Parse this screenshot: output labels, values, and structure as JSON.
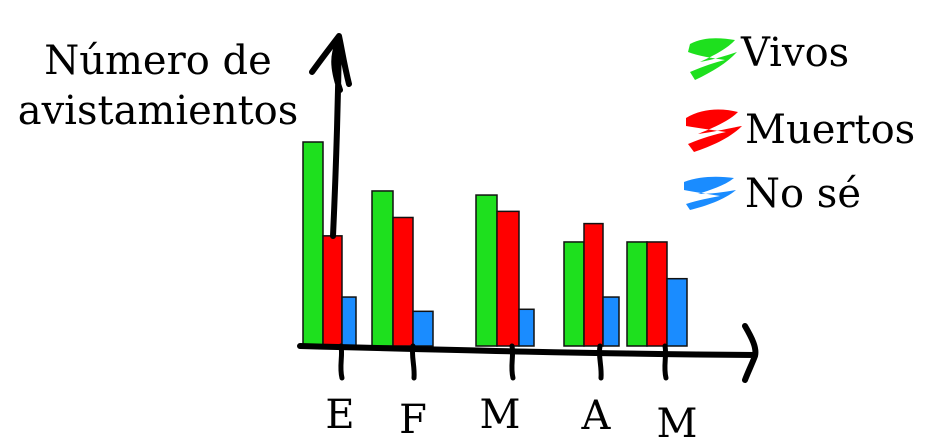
{
  "chart_data": {
    "type": "bar",
    "ylabel_lines": [
      "Número de",
      "avistamientos"
    ],
    "categories": [
      "E",
      "F",
      "M",
      "A",
      "M"
    ],
    "series": [
      {
        "name": "Vivos",
        "color": "#1ee01e",
        "values": [
          10,
          7.6,
          7.4,
          5.1,
          5.1
        ]
      },
      {
        "name": "Muertos",
        "color": "#ff0000",
        "values": [
          5.4,
          6.3,
          6.6,
          6.0,
          5.1
        ]
      },
      {
        "name": "No sé",
        "color": "#1a8cff",
        "values": [
          2.4,
          1.7,
          1.8,
          2.4,
          3.3
        ]
      }
    ],
    "ylim": [
      0,
      10
    ],
    "show_y_ticks": false,
    "grid": false,
    "legend_position": "top-right"
  }
}
